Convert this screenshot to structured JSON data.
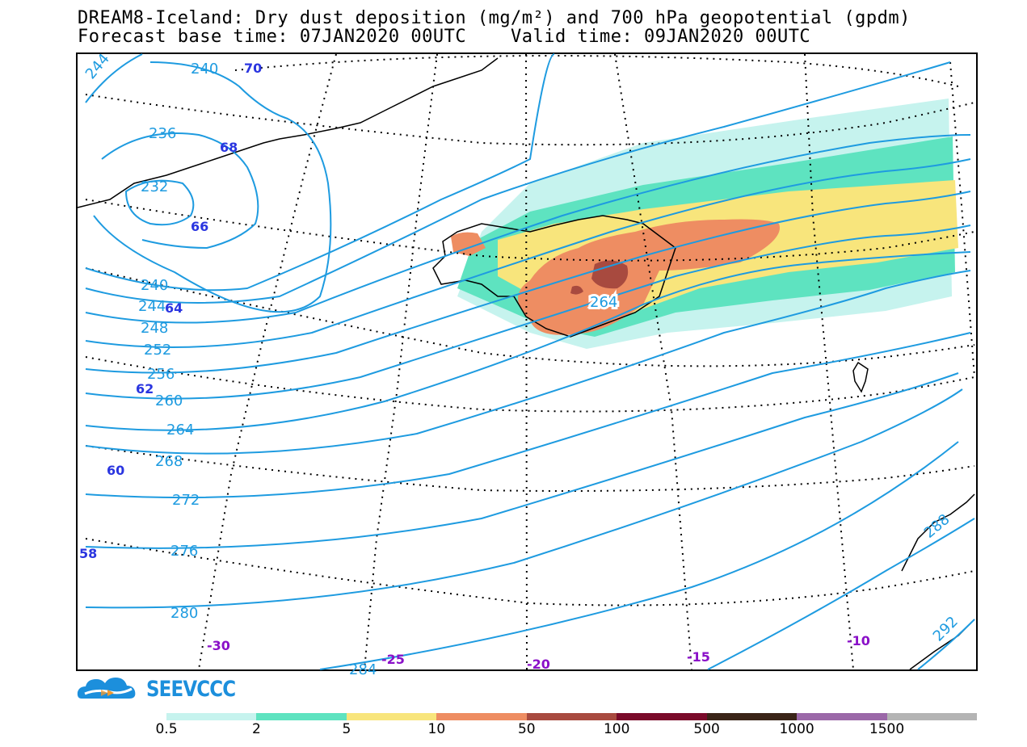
{
  "title": {
    "line1": "DREAM8-Iceland: Dry dust deposition (mg/m²) and 700 hPa geopotential (gpdm)",
    "line2": "Forecast base time: 07JAN2020 00UTC    Valid time: 09JAN2020 00UTC"
  },
  "map": {
    "geopotential_labels": [
      "244",
      "240",
      "236",
      "232",
      "240",
      "244",
      "248",
      "252",
      "256",
      "260",
      "264",
      "268",
      "272",
      "276",
      "280",
      "284",
      "264",
      "288",
      "292"
    ],
    "latitude_labels": [
      "70",
      "68",
      "66",
      "64",
      "62",
      "60",
      "58"
    ],
    "longitude_labels": [
      "-30",
      "-25",
      "-20",
      "-15",
      "-10"
    ],
    "colors": {
      "contour": "#1e9be0",
      "coastline": "#000000",
      "graticule": "#000000"
    }
  },
  "logo": {
    "text": "SEEVCCC",
    "icon": "cloud-logo-icon"
  },
  "legend": {
    "labels": [
      "0.5",
      "2",
      "5",
      "10",
      "50",
      "100",
      "500",
      "1000",
      "1500"
    ],
    "colors": [
      "#c6f3ee",
      "#5ee3c0",
      "#f8e57c",
      "#ee8d62",
      "#a84a3f",
      "#7a0a2a",
      "#3a2418",
      "#9b68a8",
      "#b4b4b4"
    ]
  }
}
